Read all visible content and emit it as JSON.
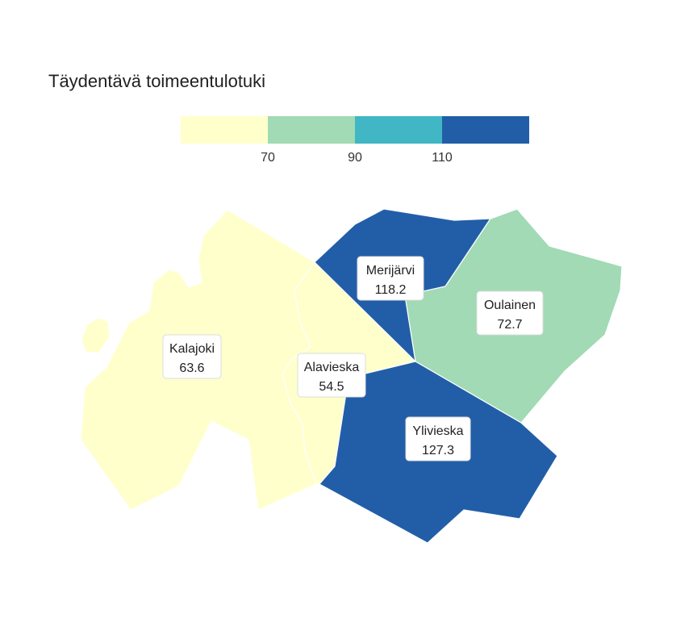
{
  "title": "Täydentävä toimeentulotuki",
  "legend": {
    "colors": [
      "#ffffcc",
      "#a1dab4",
      "#41b6c4",
      "#225ea8"
    ],
    "breaks": [
      {
        "value": 70,
        "label": "70"
      },
      {
        "value": 90,
        "label": "90"
      },
      {
        "value": 110,
        "label": "110"
      }
    ]
  },
  "regions": [
    {
      "name": "Kalajoki",
      "value": "63.6",
      "color": "#ffffcc"
    },
    {
      "name": "Alavieska",
      "value": "54.5",
      "color": "#ffffcc"
    },
    {
      "name": "Merijärvi",
      "value": "118.2",
      "color": "#225ea8"
    },
    {
      "name": "Oulainen",
      "value": "72.7",
      "color": "#a1dab4"
    },
    {
      "name": "Ylivieska",
      "value": "127.3",
      "color": "#225ea8"
    }
  ]
}
